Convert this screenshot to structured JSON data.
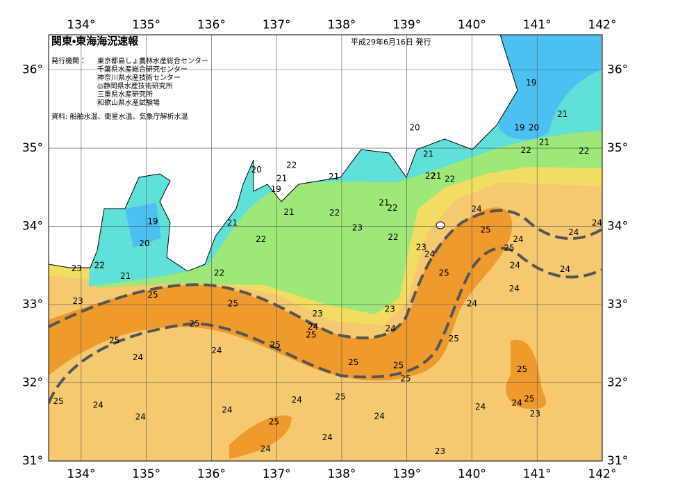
{
  "header": {
    "title": "関東・東海海況速報",
    "date": "平成29年6月16日 発行"
  },
  "issuers": {
    "label": "発行機関：",
    "organizations": [
      "東京都島しょ農林水産総合センター",
      "千葉県水産総合研究センター",
      "神奈川県水産技術センター",
      "◎静岡県水産技術研究所",
      "三重県水産研究所",
      "和歌山県水産試験場"
    ]
  },
  "source": "資料: 船舶水温、衛星水温、気象庁解析水温",
  "map": {
    "lon_range": [
      133.5,
      142
    ],
    "lat_range": [
      31,
      36.45
    ],
    "lon_ticks": [
      {
        "value": 134,
        "label": "134°"
      },
      {
        "value": 135,
        "label": "135°"
      },
      {
        "value": 136,
        "label": "136°"
      },
      {
        "value": 137,
        "label": "137°"
      },
      {
        "value": 138,
        "label": "138°"
      },
      {
        "value": 139,
        "label": "139°"
      },
      {
        "value": 140,
        "label": "140°"
      },
      {
        "value": 141,
        "label": "141°"
      },
      {
        "value": 142,
        "label": "142°"
      }
    ],
    "lat_ticks": [
      {
        "value": 31,
        "label": "31°"
      },
      {
        "value": 32,
        "label": "32°"
      },
      {
        "value": 33,
        "label": "33°"
      },
      {
        "value": 34,
        "label": "34°"
      },
      {
        "value": 35,
        "label": "35°"
      },
      {
        "value": 36,
        "label": "36°"
      }
    ],
    "contour_labels": [
      {
        "text": "19",
        "lon": 140.91,
        "lat": 35.83
      },
      {
        "text": "21",
        "lon": 141.39,
        "lat": 35.43
      },
      {
        "text": "19",
        "lon": 140.73,
        "lat": 35.26
      },
      {
        "text": "20",
        "lon": 140.95,
        "lat": 35.26
      },
      {
        "text": "21",
        "lon": 141.11,
        "lat": 35.07
      },
      {
        "text": "22",
        "lon": 140.83,
        "lat": 34.97
      },
      {
        "text": "22",
        "lon": 141.72,
        "lat": 34.96
      },
      {
        "text": "20",
        "lon": 139.12,
        "lat": 35.26
      },
      {
        "text": "21",
        "lon": 139.33,
        "lat": 34.92
      },
      {
        "text": "22",
        "lon": 139.36,
        "lat": 34.64
      },
      {
        "text": "21",
        "lon": 139.45,
        "lat": 34.64
      },
      {
        "text": "22",
        "lon": 139.66,
        "lat": 34.6
      },
      {
        "text": "22",
        "lon": 137.23,
        "lat": 34.78
      },
      {
        "text": "20",
        "lon": 136.69,
        "lat": 34.72
      },
      {
        "text": "21",
        "lon": 137.08,
        "lat": 34.61
      },
      {
        "text": "19",
        "lon": 136.99,
        "lat": 34.47
      },
      {
        "text": "21",
        "lon": 137.88,
        "lat": 34.63
      },
      {
        "text": "21",
        "lon": 137.19,
        "lat": 34.18
      },
      {
        "text": "22",
        "lon": 137.89,
        "lat": 34.17
      },
      {
        "text": "21",
        "lon": 138.65,
        "lat": 34.3
      },
      {
        "text": "22",
        "lon": 138.78,
        "lat": 34.23
      },
      {
        "text": "23",
        "lon": 138.24,
        "lat": 33.98
      },
      {
        "text": "22",
        "lon": 138.79,
        "lat": 33.86
      },
      {
        "text": "23",
        "lon": 139.22,
        "lat": 33.73
      },
      {
        "text": "24",
        "lon": 139.35,
        "lat": 33.64
      },
      {
        "text": "21",
        "lon": 136.32,
        "lat": 34.04
      },
      {
        "text": "22",
        "lon": 136.76,
        "lat": 33.83
      },
      {
        "text": "22",
        "lon": 136.12,
        "lat": 33.4
      },
      {
        "text": "19",
        "lon": 135.1,
        "lat": 34.06
      },
      {
        "text": "20",
        "lon": 134.97,
        "lat": 33.78
      },
      {
        "text": "22",
        "lon": 134.28,
        "lat": 33.5
      },
      {
        "text": "21",
        "lon": 134.68,
        "lat": 33.36
      },
      {
        "text": "23",
        "lon": 133.93,
        "lat": 33.46
      },
      {
        "text": "23",
        "lon": 133.95,
        "lat": 33.04
      },
      {
        "text": "25",
        "lon": 135.1,
        "lat": 33.12
      },
      {
        "text": "25",
        "lon": 136.33,
        "lat": 33.01
      },
      {
        "text": "23",
        "lon": 137.63,
        "lat": 32.88
      },
      {
        "text": "24",
        "lon": 137.56,
        "lat": 32.71
      },
      {
        "text": "25",
        "lon": 137.53,
        "lat": 32.61
      },
      {
        "text": "23",
        "lon": 138.74,
        "lat": 32.94
      },
      {
        "text": "24",
        "lon": 138.75,
        "lat": 32.69
      },
      {
        "text": "25",
        "lon": 135.74,
        "lat": 32.75
      },
      {
        "text": "25",
        "lon": 134.51,
        "lat": 32.54
      },
      {
        "text": "24",
        "lon": 134.87,
        "lat": 32.32
      },
      {
        "text": "24",
        "lon": 136.08,
        "lat": 32.41
      },
      {
        "text": "25",
        "lon": 136.98,
        "lat": 32.48
      },
      {
        "text": "25",
        "lon": 138.18,
        "lat": 32.26
      },
      {
        "text": "25",
        "lon": 138.87,
        "lat": 32.22
      },
      {
        "text": "25",
        "lon": 138.98,
        "lat": 32.05
      },
      {
        "text": "25",
        "lon": 139.72,
        "lat": 32.56
      },
      {
        "text": "24",
        "lon": 140.07,
        "lat": 34.22
      },
      {
        "text": "25",
        "lon": 140.21,
        "lat": 33.95
      },
      {
        "text": "24",
        "lon": 140.71,
        "lat": 33.83
      },
      {
        "text": "25",
        "lon": 140.57,
        "lat": 33.72
      },
      {
        "text": "24",
        "lon": 140.66,
        "lat": 33.5
      },
      {
        "text": "24",
        "lon": 141.56,
        "lat": 33.92
      },
      {
        "text": "24",
        "lon": 141.92,
        "lat": 34.04
      },
      {
        "text": "24",
        "lon": 141.43,
        "lat": 33.45
      },
      {
        "text": "25",
        "lon": 139.57,
        "lat": 33.4
      },
      {
        "text": "24",
        "lon": 140.65,
        "lat": 33.2
      },
      {
        "text": "24",
        "lon": 140.0,
        "lat": 33.01
      },
      {
        "text": "25",
        "lon": 140.77,
        "lat": 32.17
      },
      {
        "text": "24",
        "lon": 140.69,
        "lat": 31.74
      },
      {
        "text": "25",
        "lon": 140.88,
        "lat": 31.79
      },
      {
        "text": "23",
        "lon": 140.97,
        "lat": 31.6
      },
      {
        "text": "24",
        "lon": 140.13,
        "lat": 31.69
      },
      {
        "text": "25",
        "lon": 133.65,
        "lat": 31.76
      },
      {
        "text": "24",
        "lon": 134.26,
        "lat": 31.71
      },
      {
        "text": "24",
        "lon": 134.91,
        "lat": 31.56
      },
      {
        "text": "24",
        "lon": 136.24,
        "lat": 31.65
      },
      {
        "text": "24",
        "lon": 137.31,
        "lat": 31.78
      },
      {
        "text": "25",
        "lon": 137.98,
        "lat": 31.82
      },
      {
        "text": "25",
        "lon": 136.96,
        "lat": 31.5
      },
      {
        "text": "24",
        "lon": 136.83,
        "lat": 31.15
      },
      {
        "text": "24",
        "lon": 137.78,
        "lat": 31.3
      },
      {
        "text": "24",
        "lon": 138.58,
        "lat": 31.57
      },
      {
        "text": "23",
        "lon": 139.51,
        "lat": 31.12
      }
    ]
  }
}
